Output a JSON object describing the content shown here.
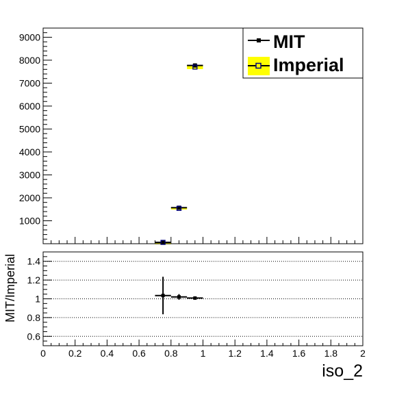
{
  "chart_data": [
    {
      "type": "scatter",
      "panel": "main",
      "xlim": [
        0,
        2
      ],
      "ylim": [
        0,
        9400
      ],
      "y_ticks": [
        {
          "value": 1000,
          "label": "1000"
        },
        {
          "value": 2000,
          "label": "2000"
        },
        {
          "value": 3000,
          "label": "3000"
        },
        {
          "value": 4000,
          "label": "4000"
        },
        {
          "value": 5000,
          "label": "5000"
        },
        {
          "value": 6000,
          "label": "6000"
        },
        {
          "value": 7000,
          "label": "7000"
        },
        {
          "value": 8000,
          "label": "8000"
        },
        {
          "value": 9000,
          "label": "9000"
        }
      ],
      "legend": {
        "position": "top-right",
        "entries": [
          {
            "label": "MIT",
            "marker": "filled-square",
            "color": "#000000"
          },
          {
            "label": "Imperial",
            "marker": "open-square",
            "color": "#00007f",
            "fill": "#ffff00"
          }
        ]
      },
      "series": [
        {
          "name": "MIT",
          "points": [
            {
              "x": 0.75,
              "xerr": 0.05,
              "y": 60,
              "yerr": 10
            },
            {
              "x": 0.85,
              "xerr": 0.05,
              "y": 1570,
              "yerr": 40
            },
            {
              "x": 0.95,
              "xerr": 0.05,
              "y": 7770,
              "yerr": 90
            }
          ]
        },
        {
          "name": "Imperial",
          "points": [
            {
              "x": 0.75,
              "xerr": 0.05,
              "y": 58,
              "yerr": 10
            },
            {
              "x": 0.85,
              "xerr": 0.05,
              "y": 1540,
              "yerr": 40
            },
            {
              "x": 0.95,
              "xerr": 0.05,
              "y": 7700,
              "yerr": 90
            }
          ]
        }
      ]
    },
    {
      "type": "scatter",
      "panel": "ratio",
      "ylabel": "MIT/Imperial",
      "xlabel": "iso_2",
      "xlim": [
        0,
        2
      ],
      "ylim": [
        0.5,
        1.5
      ],
      "grid": "horizontal-dotted",
      "x_ticks": [
        {
          "value": 0,
          "label": "0"
        },
        {
          "value": 0.2,
          "label": "0.2"
        },
        {
          "value": 0.4,
          "label": "0.4"
        },
        {
          "value": 0.6,
          "label": "0.6"
        },
        {
          "value": 0.8,
          "label": "0.8"
        },
        {
          "value": 1.0,
          "label": "1"
        },
        {
          "value": 1.2,
          "label": "1.2"
        },
        {
          "value": 1.4,
          "label": "1.4"
        },
        {
          "value": 1.6,
          "label": "1.6"
        },
        {
          "value": 1.8,
          "label": "1.8"
        },
        {
          "value": 2.0,
          "label": "2"
        }
      ],
      "y_ticks": [
        {
          "value": 0.6,
          "label": "0.6"
        },
        {
          "value": 0.8,
          "label": "0.8"
        },
        {
          "value": 1.0,
          "label": "1"
        },
        {
          "value": 1.2,
          "label": "1.2"
        },
        {
          "value": 1.4,
          "label": "1.4"
        }
      ],
      "series": [
        {
          "points": [
            {
              "x": 0.75,
              "xerr": 0.05,
              "y": 1.035,
              "yerr": 0.2
            },
            {
              "x": 0.85,
              "xerr": 0.05,
              "y": 1.02,
              "yerr": 0.03
            },
            {
              "x": 0.95,
              "xerr": 0.05,
              "y": 1.008,
              "yerr": 0.012
            }
          ]
        }
      ]
    }
  ]
}
